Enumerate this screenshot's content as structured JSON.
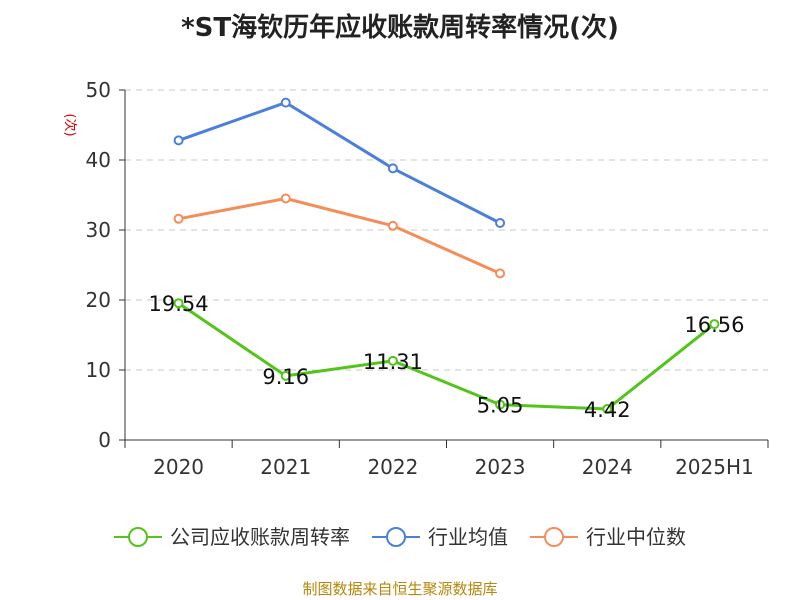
{
  "chart_data": {
    "type": "line",
    "title": "*ST海钦历年应收账款周转率情况(次)",
    "ylabel": "(次)",
    "xlabel": "",
    "categories": [
      "2020",
      "2021",
      "2022",
      "2023",
      "2024",
      "2025H1"
    ],
    "ylim": [
      0,
      50
    ],
    "yticks": [
      0,
      10,
      20,
      30,
      40,
      50
    ],
    "grid": true,
    "legend_position": "bottom",
    "series": [
      {
        "name": "公司应收账款周转率",
        "color": "#52c41a",
        "values": [
          19.54,
          9.16,
          11.31,
          5.05,
          4.42,
          16.56
        ],
        "labels": [
          "19.54",
          "9.16",
          "11.31",
          "5.05",
          "4.42",
          "16.56"
        ]
      },
      {
        "name": "行业均值",
        "color": "#4a7fdb",
        "values": [
          42.8,
          48.2,
          38.8,
          31.0,
          null,
          null
        ]
      },
      {
        "name": "行业中位数",
        "color": "#f58d5a",
        "values": [
          31.6,
          34.5,
          30.6,
          23.8,
          null,
          null
        ]
      }
    ]
  },
  "source_text": "制图数据来自恒生聚源数据库"
}
